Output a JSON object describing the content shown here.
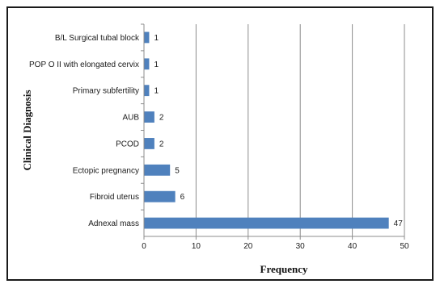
{
  "chart_data": {
    "type": "bar",
    "orientation": "horizontal",
    "categories": [
      "B/L Surgical tubal block",
      "POP O II with elongated cervix",
      "Primary subfertility",
      "AUB",
      "PCOD",
      "Ectopic pregnancy",
      "Fibroid uterus",
      "Adnexal mass"
    ],
    "values": [
      1,
      1,
      1,
      2,
      2,
      5,
      6,
      47
    ],
    "xlabel": "Frequency",
    "ylabel": "Clinical Diagnosis",
    "xlim": [
      0,
      50
    ],
    "xticks": [
      0,
      10,
      20,
      30,
      40,
      50
    ],
    "grid": "vertical",
    "legend": "none",
    "bar_color": "#4f81bd"
  }
}
